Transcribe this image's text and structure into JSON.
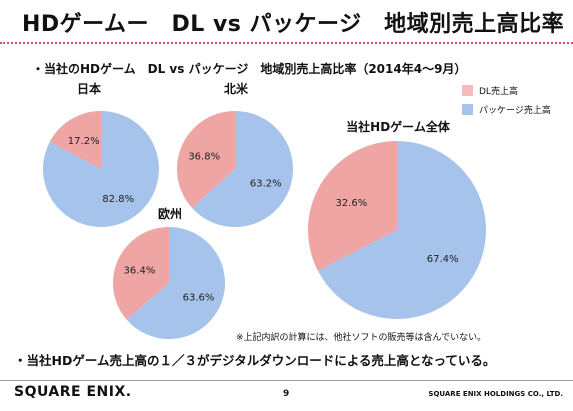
{
  "slide": {
    "title": "HDゲームー　DL vs パッケージ　地域別売上高比率",
    "subtitle": "・当社のHDゲーム　DL vs パッケージ　地域別売上高比率（2014年4～9月）",
    "note": "※上記内訳の計算には、他社ソフトの販売等は含んでいない。",
    "conclusion": "・当社HDゲーム売上高の１／３がデジタルダウンロードによる売上高となっている。",
    "page_number": "9",
    "logo_text": "SQUARE ENIX.",
    "company_name": "SQUARE ENIX HOLDINGS CO., LTD."
  },
  "colors": {
    "dl": "#f0a5a5",
    "package": "#a6c3ec",
    "dl_legend": "#f4bcbc",
    "title_rule": "#d24c6c"
  },
  "chart_data": [
    {
      "type": "pie",
      "title": "日本",
      "legend": [
        "DL売上高",
        "パッケージ売上高"
      ],
      "series": [
        {
          "name": "DL売上高",
          "value": 17.2,
          "label": "17.2%"
        },
        {
          "name": "パッケージ売上高",
          "value": 82.8,
          "label": "82.8%"
        }
      ]
    },
    {
      "type": "pie",
      "title": "北米",
      "series": [
        {
          "name": "DL売上高",
          "value": 36.8,
          "label": "36.8%"
        },
        {
          "name": "パッケージ売上高",
          "value": 63.2,
          "label": "63.2%"
        }
      ]
    },
    {
      "type": "pie",
      "title": "欧州",
      "series": [
        {
          "name": "DL売上高",
          "value": 36.4,
          "label": "36.4%"
        },
        {
          "name": "パッケージ売上高",
          "value": 63.6,
          "label": "63.6%"
        }
      ]
    },
    {
      "type": "pie",
      "title": "当社HDゲーム全体",
      "series": [
        {
          "name": "DL売上高",
          "value": 32.6,
          "label": "32.6%"
        },
        {
          "name": "パッケージ売上高",
          "value": 67.4,
          "label": "67.4%"
        }
      ]
    }
  ]
}
